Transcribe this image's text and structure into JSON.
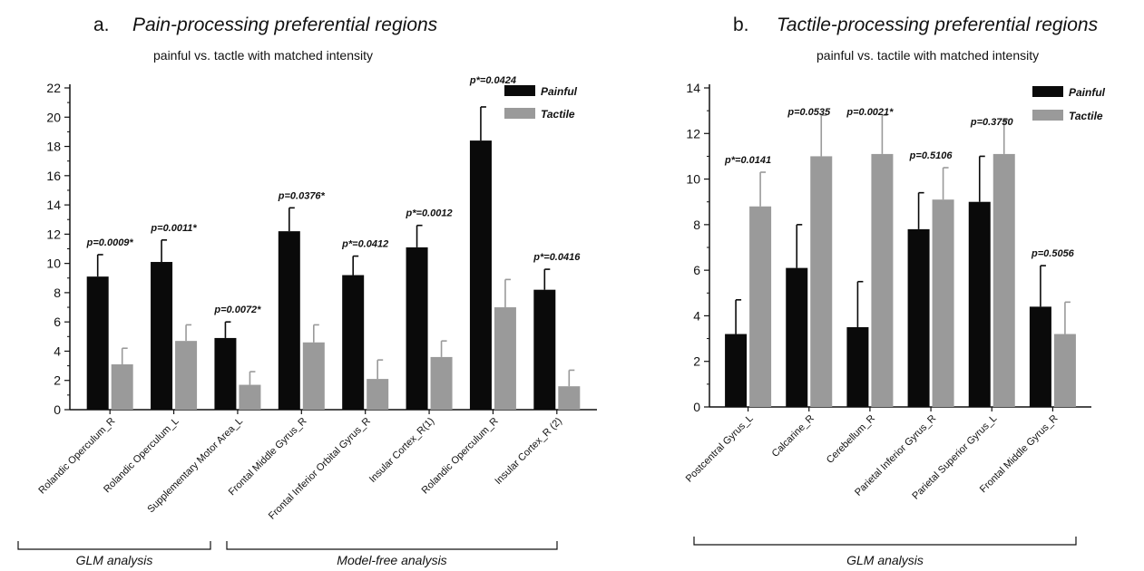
{
  "colors": {
    "painful": "#0a0a0a",
    "tactile": "#9a9a9a",
    "axis": "#111111"
  },
  "chart_data": [
    {
      "type": "bar",
      "panel_letter": "a.",
      "title": "Pain-processing preferential regions",
      "subtitle": "painful vs. tactle with matched intensity",
      "ylim": [
        0,
        22
      ],
      "yticks": [
        0,
        2,
        4,
        6,
        8,
        10,
        12,
        14,
        16,
        18,
        20,
        22
      ],
      "grid": false,
      "legend_position": "top-right",
      "categories": [
        "Rolandic Operculum_R",
        "Rolandic Operculum_L",
        "Supplementary Motor Area_L",
        "Frontal Middle Gyrus_R",
        "Frontal Inferior Orbital Gyrus_R",
        "Insular Cortex_R(1)",
        "Rolandic Operculum_R",
        "Insular Cortex_R (2)"
      ],
      "series": [
        {
          "name": "Painful",
          "color": "#0a0a0a",
          "values": [
            9.1,
            10.1,
            4.9,
            12.2,
            9.2,
            11.1,
            18.4,
            8.2
          ],
          "errors": [
            1.5,
            1.5,
            1.1,
            1.6,
            1.3,
            1.5,
            2.3,
            1.4
          ]
        },
        {
          "name": "Tactile",
          "color": "#9a9a9a",
          "values": [
            3.1,
            4.7,
            1.7,
            4.6,
            2.1,
            3.6,
            7.0,
            1.6
          ],
          "errors": [
            1.1,
            1.1,
            0.9,
            1.2,
            1.3,
            1.1,
            1.9,
            1.1
          ]
        }
      ],
      "annotations": [
        "p=0.0009*",
        "p=0.0011*",
        "p=0.0072*",
        "p=0.0376*",
        "p*=0.0412",
        "p*=0.0012",
        "p*=0.0424",
        "p*=0.0416"
      ],
      "groups": [
        {
          "label": "GLM analysis",
          "from": 0,
          "to": 1
        },
        {
          "label": "Model-free analysis",
          "from": 2,
          "to": 7
        }
      ]
    },
    {
      "type": "bar",
      "panel_letter": "b.",
      "title": "Tactile-processing preferential regions",
      "subtitle": "painful vs. tactile with matched intensity",
      "ylim": [
        0,
        14
      ],
      "yticks": [
        0,
        2,
        4,
        6,
        8,
        10,
        12,
        14
      ],
      "grid": false,
      "legend_position": "top-right",
      "categories": [
        "Postcentral Gyrus_L",
        "Calcarine_R",
        "Cerebellum_R",
        "Parietal Inferior Gyrus_R",
        "Parietal Superior Gyrus_L",
        "Frontal Middle Gyrus_R"
      ],
      "series": [
        {
          "name": "Painful",
          "color": "#0a0a0a",
          "values": [
            3.2,
            6.1,
            3.5,
            7.8,
            9.0,
            4.4
          ],
          "errors": [
            1.5,
            1.9,
            2.0,
            1.6,
            2.0,
            1.8
          ]
        },
        {
          "name": "Tactile",
          "color": "#9a9a9a",
          "values": [
            8.8,
            11.0,
            11.1,
            9.1,
            11.1,
            3.2
          ],
          "errors": [
            1.5,
            1.8,
            1.7,
            1.4,
            1.5,
            1.4
          ]
        }
      ],
      "annotations": [
        "p*=0.0141",
        "p=0.0535",
        "p=0.0021*",
        "p=0.5106",
        "p=0.3750",
        "p=0.5056"
      ],
      "groups": [
        {
          "label": "GLM analysis",
          "from": 0,
          "to": 5
        }
      ]
    }
  ]
}
